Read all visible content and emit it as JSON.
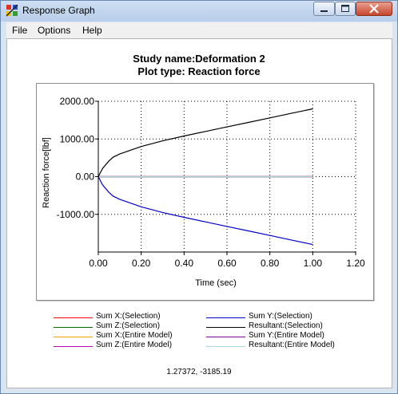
{
  "window": {
    "title": "Response Graph"
  },
  "menu": {
    "file": "File",
    "options": "Options",
    "help": "Help"
  },
  "header": {
    "study_name": "Study name:Deformation 2",
    "plot_type": "Plot type: Reaction force"
  },
  "chart_data": {
    "type": "line",
    "xlabel": "Time (sec)",
    "ylabel": "Reaction force[lbf]",
    "xlim": [
      0,
      1.2
    ],
    "ylim": [
      -2000,
      2000
    ],
    "x_ticks": [
      "0.00",
      "0.20",
      "0.40",
      "0.60",
      "0.80",
      "1.00",
      "1.20"
    ],
    "y_ticks": [
      "2000.00",
      "1000.00",
      "0.00",
      "-1000.00"
    ],
    "grid": true,
    "legend_position": "bottom",
    "series": [
      {
        "name": "Sum X:(Selection)",
        "color": "#ff0000",
        "x": [
          0,
          1
        ],
        "y": [
          0,
          0
        ]
      },
      {
        "name": "Sum Z:(Selection)",
        "color": "#007000",
        "x": [
          0,
          1
        ],
        "y": [
          0,
          0
        ]
      },
      {
        "name": "Sum X:(Entire Model)",
        "color": "#ffa000",
        "x": [
          0,
          1
        ],
        "y": [
          0,
          0
        ]
      },
      {
        "name": "Sum Z:(Entire Model)",
        "color": "#c000c0",
        "x": [
          0,
          1
        ],
        "y": [
          0,
          0
        ]
      },
      {
        "name": "Sum Y:(Selection)",
        "color": "#0000cc",
        "x": [
          0,
          0.02,
          0.05,
          0.07,
          0.1,
          0.2,
          0.3,
          0.4,
          0.5,
          0.6,
          0.7,
          0.8,
          0.9,
          1.0
        ],
        "y": [
          0,
          -220,
          -420,
          -520,
          -600,
          -800,
          -950,
          -1080,
          -1200,
          -1320,
          -1440,
          -1560,
          -1680,
          -1800
        ]
      },
      {
        "name": "Resultant:(Selection)",
        "color": "#000000",
        "x": [
          0,
          0.02,
          0.05,
          0.07,
          0.1,
          0.2,
          0.3,
          0.4,
          0.5,
          0.6,
          0.7,
          0.8,
          0.9,
          1.0
        ],
        "y": [
          0,
          220,
          420,
          520,
          600,
          800,
          950,
          1080,
          1200,
          1320,
          1440,
          1560,
          1680,
          1800
        ]
      },
      {
        "name": "Sum Y:(Entire Model)",
        "color": "#8000a0",
        "x": [
          0,
          1
        ],
        "y": [
          0,
          0
        ]
      },
      {
        "name": "Resultant:(Entire Model)",
        "color": "#a8d8d8",
        "x": [
          0,
          1
        ],
        "y": [
          0,
          0
        ]
      }
    ]
  },
  "status": {
    "coordinates": "1.27372, -3185.19"
  }
}
